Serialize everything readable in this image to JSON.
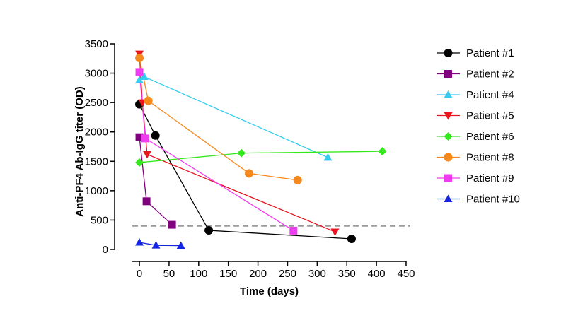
{
  "chart_data": {
    "type": "line",
    "xlabel": "Time (days)",
    "ylabel": "Anti-PF4 Ab-IgG titer (OD)",
    "xlim": [
      -12,
      450
    ],
    "ylim": [
      0,
      3500
    ],
    "xticks": [
      0,
      50,
      100,
      150,
      200,
      250,
      300,
      350,
      400,
      450
    ],
    "yticks": [
      0,
      500,
      1000,
      1500,
      2000,
      2500,
      3000,
      3500
    ],
    "threshold": {
      "y": 400,
      "style": "dashed",
      "color": "#999999"
    },
    "legend_position": "right",
    "series": [
      {
        "name": "Patient #1",
        "marker": "circle",
        "color": "#000000",
        "x": [
          0,
          27,
          117,
          358
        ],
        "y": [
          2470,
          1940,
          325,
          180
        ]
      },
      {
        "name": "Patient #2",
        "marker": "square",
        "color": "#800080",
        "x": [
          0,
          12,
          55
        ],
        "y": [
          1910,
          820,
          420
        ]
      },
      {
        "name": "Patient #4",
        "marker": "triangle-up",
        "color": "#33CCEE",
        "x": [
          0,
          8,
          318
        ],
        "y": [
          2880,
          2940,
          1565
        ]
      },
      {
        "name": "Patient #5",
        "marker": "triangle-down",
        "color": "#E8141E",
        "x": [
          0,
          5,
          13,
          330
        ],
        "y": [
          3330,
          2500,
          1620,
          300
        ]
      },
      {
        "name": "Patient #6",
        "marker": "diamond",
        "color": "#33E81B",
        "x": [
          0,
          172,
          410
        ],
        "y": [
          1480,
          1640,
          1670
        ]
      },
      {
        "name": "Patient #8",
        "marker": "circle",
        "color": "#F5891E",
        "x": [
          0,
          15,
          185,
          267
        ],
        "y": [
          3260,
          2530,
          1295,
          1180
        ]
      },
      {
        "name": "Patient #9",
        "marker": "square",
        "color": "#F03CF0",
        "x": [
          0,
          10,
          260
        ],
        "y": [
          3020,
          1890,
          320
        ]
      },
      {
        "name": "Patient #10",
        "marker": "triangle-up",
        "color": "#1426E0",
        "x": [
          0,
          28,
          70
        ],
        "y": [
          120,
          70,
          65
        ]
      }
    ]
  }
}
